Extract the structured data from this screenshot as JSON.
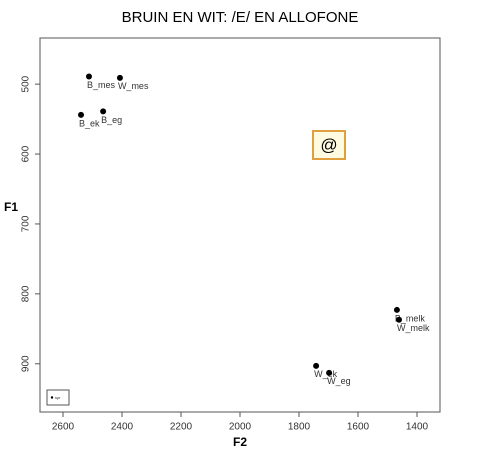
{
  "chart_data": {
    "type": "scatter",
    "title": "BRUIN EN WIT: /E/ EN ALLOFONE",
    "x_label": "F2",
    "y_label": "F1",
    "x": [
      2512,
      2407,
      2539,
      2464,
      1468,
      1461,
      1742,
      1698
    ],
    "series": [
      {
        "name": "spr",
        "color": "#000000",
        "values": [
          489,
          491,
          544,
          539,
          823,
          837,
          903,
          913
        ],
        "point_labels": [
          "B_mes",
          "W_mes",
          "B_ek",
          "B_eg",
          "B_melk",
          "W_melk",
          "W_ek",
          "W_eg"
        ]
      }
    ],
    "xlim": [
      2678,
      1322
    ],
    "ylim": [
      969,
      434
    ],
    "xticks": [
      2600,
      2400,
      2200,
      2000,
      1800,
      1600,
      1400
    ],
    "yticks": [
      500,
      600,
      700,
      800,
      900
    ],
    "annotation": "@",
    "legend": "bottom-left",
    "grid": false
  }
}
